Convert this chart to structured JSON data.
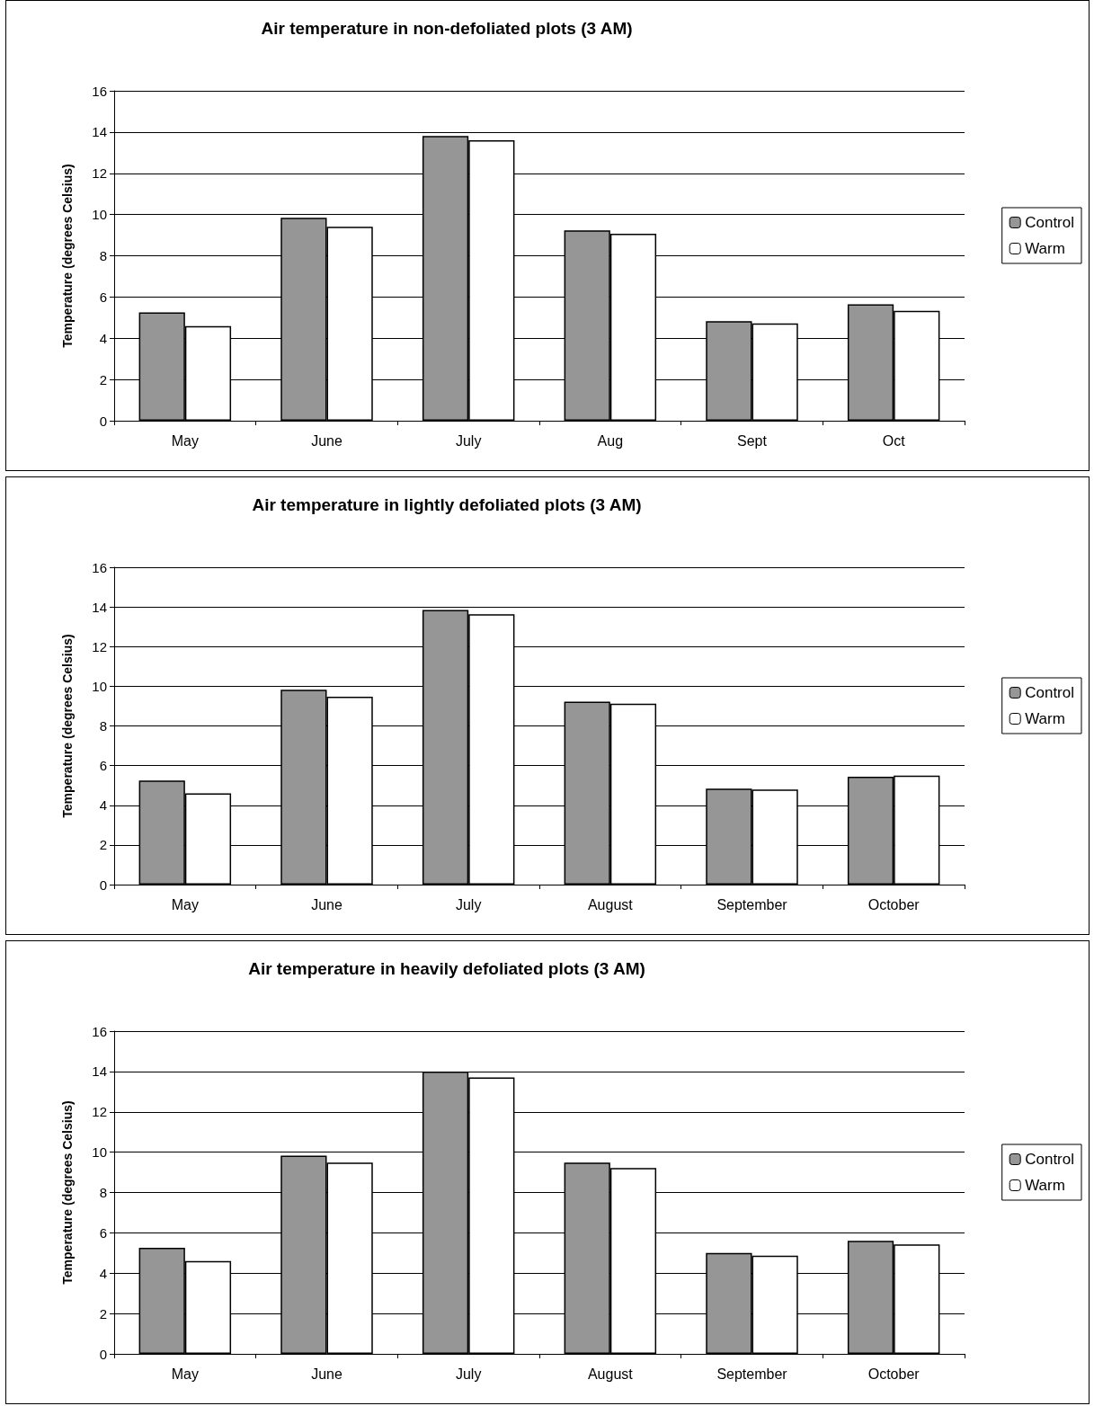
{
  "chart_data": [
    {
      "type": "bar",
      "title": "Air temperature in non-defoliated plots (3 AM)",
      "ylabel": "Temperature (degrees Celsius)",
      "categories": [
        "May",
        "June",
        "July",
        "Aug",
        "Sept",
        "Oct"
      ],
      "series": [
        {
          "name": "Control",
          "color": "#969696",
          "values": [
            5.25,
            9.84,
            13.81,
            9.23,
            4.83,
            5.65
          ]
        },
        {
          "name": "Warm",
          "color": "#ffffff",
          "values": [
            4.59,
            9.41,
            13.6,
            9.07,
            4.72,
            5.33
          ]
        }
      ],
      "ylim": [
        0,
        16
      ],
      "yticks": [
        0,
        2,
        4,
        6,
        8,
        10,
        12,
        14,
        16
      ],
      "grid": "y",
      "legend": "right"
    },
    {
      "type": "bar",
      "title": "Air temperature in lightly defoliated plots (3 AM)",
      "ylabel": "Temperature (degrees Celsius)",
      "categories": [
        "May",
        "June",
        "July",
        "August",
        "September",
        "October"
      ],
      "series": [
        {
          "name": "Control",
          "color": "#969696",
          "values": [
            5.25,
            9.82,
            13.85,
            9.22,
            4.84,
            5.44
          ]
        },
        {
          "name": "Warm",
          "color": "#ffffff",
          "values": [
            4.6,
            9.47,
            13.63,
            9.12,
            4.79,
            5.5
          ]
        }
      ],
      "ylim": [
        0,
        16
      ],
      "yticks": [
        0,
        2,
        4,
        6,
        8,
        10,
        12,
        14,
        16
      ],
      "grid": "y",
      "legend": "right"
    },
    {
      "type": "bar",
      "title": "Air temperature in heavily defoliated plots (3 AM)",
      "ylabel": "Temperature (degrees Celsius)",
      "categories": [
        "May",
        "June",
        "July",
        "August",
        "September",
        "October"
      ],
      "series": [
        {
          "name": "Control",
          "color": "#969696",
          "values": [
            5.26,
            9.83,
            14.0,
            9.48,
            5.0,
            5.6
          ]
        },
        {
          "name": "Warm",
          "color": "#ffffff",
          "values": [
            4.6,
            9.48,
            13.7,
            9.22,
            4.87,
            5.43
          ]
        }
      ],
      "ylim": [
        0,
        16
      ],
      "yticks": [
        0,
        2,
        4,
        6,
        8,
        10,
        12,
        14,
        16
      ],
      "grid": "y",
      "legend": "right"
    }
  ]
}
